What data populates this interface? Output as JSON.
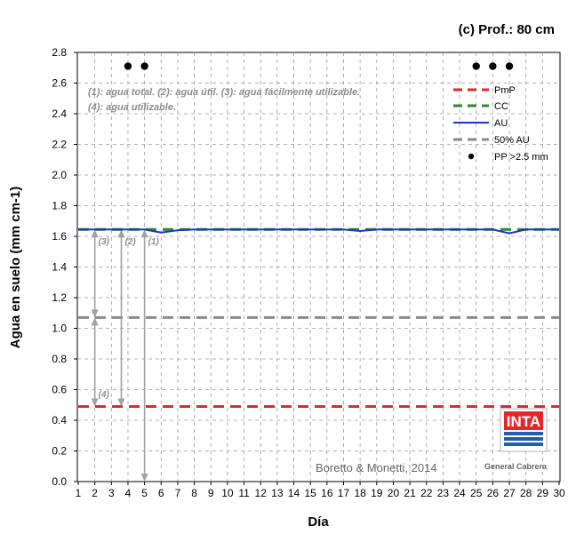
{
  "chart_data": {
    "type": "line",
    "title": "(c) Prof.: 80 cm",
    "xlabel": "Día",
    "ylabel": "Agua en suelo (mm cm-1)",
    "xlim": [
      1,
      30
    ],
    "ylim": [
      0.0,
      2.8
    ],
    "x_ticks": [
      1,
      2,
      3,
      4,
      5,
      6,
      7,
      8,
      9,
      10,
      11,
      12,
      13,
      14,
      15,
      16,
      17,
      18,
      19,
      20,
      21,
      22,
      23,
      24,
      25,
      26,
      27,
      28,
      29,
      30
    ],
    "y_ticks": [
      "0.0",
      "0.2",
      "0.4",
      "0.6",
      "0.8",
      "1.0",
      "1.2",
      "1.4",
      "1.6",
      "1.8",
      "2.0",
      "2.2",
      "2.4",
      "2.6",
      "2.8"
    ],
    "grid": true,
    "legend_position": "top-right",
    "series": [
      {
        "name": "PmP",
        "color": "#e8262a",
        "style": "dashed",
        "x": [
          1,
          30
        ],
        "y": [
          0.49,
          0.49
        ]
      },
      {
        "name": "CC",
        "color": "#2a8a2a",
        "style": "dashed",
        "x": [
          1,
          30
        ],
        "y": [
          1.645,
          1.645
        ]
      },
      {
        "name": "AU",
        "color": "#1f2fd6",
        "style": "solid",
        "x": [
          1,
          2,
          3,
          4,
          5,
          6,
          7,
          8,
          9,
          10,
          11,
          12,
          13,
          14,
          15,
          16,
          17,
          18,
          19,
          20,
          21,
          22,
          23,
          24,
          25,
          26,
          27,
          28,
          29,
          30
        ],
        "y": [
          1.645,
          1.645,
          1.645,
          1.645,
          1.645,
          1.625,
          1.64,
          1.645,
          1.645,
          1.645,
          1.645,
          1.645,
          1.645,
          1.645,
          1.645,
          1.645,
          1.645,
          1.635,
          1.645,
          1.645,
          1.645,
          1.645,
          1.645,
          1.645,
          1.645,
          1.645,
          1.62,
          1.645,
          1.645,
          1.645
        ]
      },
      {
        "name": "50% AU",
        "color": "#8a8a8a",
        "style": "dashed",
        "x": [
          1,
          30
        ],
        "y": [
          1.07,
          1.07
        ]
      },
      {
        "name": "PP >2.5 mm",
        "color": "#000000",
        "style": "marker",
        "x": [
          4,
          5,
          25,
          26,
          27
        ],
        "y": [
          2.71,
          2.71,
          2.71,
          2.71,
          2.71
        ]
      }
    ],
    "annotations": {
      "note_line1": "(1): agua total.   (2): agua útil.   (3): agua fácilmente utilizable.",
      "note_line2": "(4): agua utilizable.",
      "arrows": [
        {
          "label": "(3)",
          "x": 2,
          "y_from": 1.07,
          "y_to": 1.645
        },
        {
          "label": "(4)",
          "x": 2,
          "y_from": 0.49,
          "y_to": 1.07
        },
        {
          "label": "(2)",
          "x": 3.6,
          "y_from": 0.49,
          "y_to": 1.645
        },
        {
          "label": "(1)",
          "x": 5,
          "y_from": 0.0,
          "y_to": 1.645
        }
      ],
      "credit": "Boretto & Monetti, 2014"
    },
    "logo": {
      "text": "INTA",
      "subtext": "General Cabrera"
    }
  }
}
